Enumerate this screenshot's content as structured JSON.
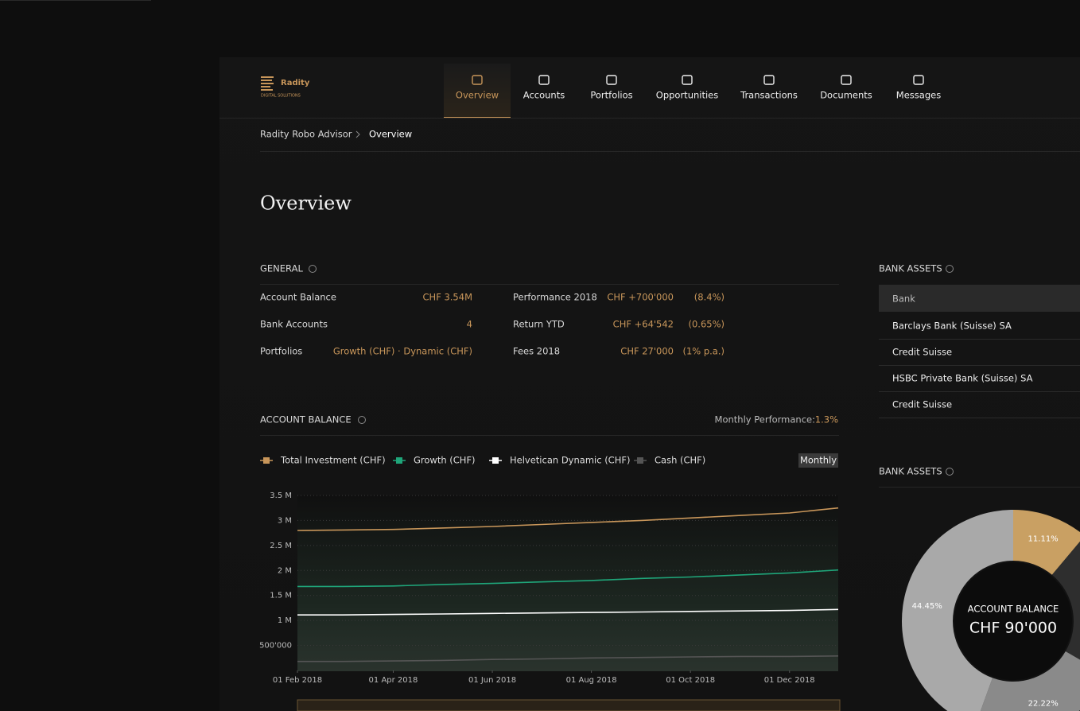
{
  "header": {
    "logo": "Radity",
    "logo_sub": "DIGITAL SOLUTIONS",
    "nav": [
      "Overview",
      "Accounts",
      "Portfolios",
      "Opportunities",
      "Transactions",
      "Documents",
      "Messages"
    ],
    "active_nav": 0
  },
  "breadcrumb": [
    "Radity Robo Advisor",
    "Overview"
  ],
  "page_title": "Overview",
  "general": {
    "title": "GENERAL",
    "left": [
      {
        "label": "Account Balance",
        "value": "CHF 3.54M"
      },
      {
        "label": "Bank Accounts",
        "value": "4"
      },
      {
        "label": "Portfolios",
        "value": "Growth (CHF) · Dynamic (CHF)"
      }
    ],
    "right": [
      {
        "label": "Performance 2018",
        "value": "CHF +700'000",
        "pct": "(8.4%)"
      },
      {
        "label": "Return YTD",
        "value": "CHF +64'542",
        "pct": "(0.65%)"
      },
      {
        "label": "Fees 2018",
        "value": "CHF 27'000",
        "pct": "(1% p.a.)"
      }
    ]
  },
  "bank_assets": {
    "title": "BANK ASSETS",
    "header": "Bank",
    "rows": [
      "Barclays Bank (Suisse) SA",
      "Credit Suisse",
      "HSBC Private Bank (Suisse) SA",
      "Credit Suisse"
    ]
  },
  "chart_data": [
    {
      "type": "line",
      "title": "ACCOUNT BALANCE",
      "performance_label": "Monthly Performance:",
      "performance_value": "1.3%",
      "period_button": "Monthly",
      "x": [
        "2018-02-01",
        "2018-03-01",
        "2018-04-01",
        "2018-05-01",
        "2018-06-01",
        "2018-07-01",
        "2018-08-01",
        "2018-09-01",
        "2018-10-01",
        "2018-11-01",
        "2018-12-01",
        "2018-12-31"
      ],
      "xlim": [
        "2018-02-01",
        "2018-12-31"
      ],
      "xticks": [
        {
          "value": "2018-02-01",
          "label": "01 Feb 2018"
        },
        {
          "value": "2018-04-01",
          "label": "01 Apr 2018"
        },
        {
          "value": "2018-06-01",
          "label": "01 Jun 2018"
        },
        {
          "value": "2018-08-01",
          "label": "01 Aug 2018"
        },
        {
          "value": "2018-10-01",
          "label": "01 Oct 2018"
        },
        {
          "value": "2018-12-01",
          "label": "01 Dec 2018"
        }
      ],
      "ylim": [
        0,
        3500000
      ],
      "yticks": [
        {
          "value": 500000,
          "label": "500'000"
        },
        {
          "value": 1000000,
          "label": "1 M"
        },
        {
          "value": 1500000,
          "label": "1.5 M"
        },
        {
          "value": 2000000,
          "label": "2 M"
        },
        {
          "value": 2500000,
          "label": "2.5 M"
        },
        {
          "value": 3000000,
          "label": "3 M"
        },
        {
          "value": 3500000,
          "label": "3.5 M"
        }
      ],
      "grid": true,
      "series": [
        {
          "name": "Total Investment (CHF)",
          "color": "#c8965a",
          "values": [
            2800000,
            2810000,
            2820000,
            2850000,
            2880000,
            2920000,
            2960000,
            3000000,
            3050000,
            3100000,
            3150000,
            3250000
          ]
        },
        {
          "name": "Growth (CHF)",
          "color": "#1fa67a",
          "values": [
            1680000,
            1680000,
            1690000,
            1720000,
            1740000,
            1770000,
            1800000,
            1840000,
            1870000,
            1910000,
            1950000,
            2010000
          ]
        },
        {
          "name": "Helvetican Dynamic (CHF)",
          "color": "#ffffff",
          "values": [
            1110000,
            1110000,
            1120000,
            1130000,
            1140000,
            1150000,
            1160000,
            1170000,
            1180000,
            1190000,
            1200000,
            1220000
          ]
        },
        {
          "name": "Cash (CHF)",
          "color": "#555555",
          "values": [
            180000,
            180000,
            190000,
            200000,
            220000,
            230000,
            250000,
            260000,
            270000,
            280000,
            280000,
            290000
          ]
        }
      ]
    },
    {
      "type": "pie",
      "title": "BANK ASSETS",
      "center_label": "ACCOUNT BALANCE",
      "center_value": "CHF 90'000",
      "values": [
        11.11,
        22.22,
        22.22,
        44.45
      ],
      "value_labels": [
        "11.11%",
        null,
        "22.22%",
        "44.45%"
      ],
      "colors": [
        "#c9a063",
        "#2e2e2e",
        "#8a8a8a",
        "#a9a9a9"
      ]
    }
  ]
}
